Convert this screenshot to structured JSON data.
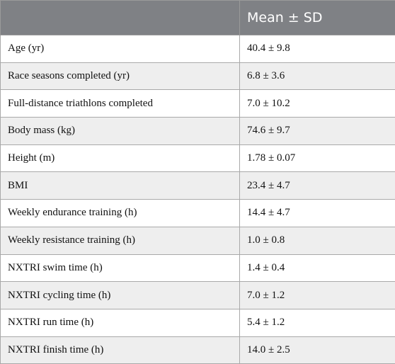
{
  "table": {
    "headers": [
      "",
      "Mean ± SD"
    ],
    "rows": [
      [
        "Age (yr)",
        "40.4 ± 9.8"
      ],
      [
        "Race seasons completed (yr)",
        "6.8 ± 3.6"
      ],
      [
        "Full-distance triathlons completed",
        "7.0 ± 10.2"
      ],
      [
        "Body mass (kg)",
        "74.6 ± 9.7"
      ],
      [
        "Height (m)",
        "1.78 ± 0.07"
      ],
      [
        "BMI",
        "23.4 ± 4.7"
      ],
      [
        "Weekly endurance training (h)",
        "14.4 ± 4.7"
      ],
      [
        "Weekly resistance training (h)",
        "1.0 ± 0.8"
      ],
      [
        "NXTRI swim time (h)",
        "1.4 ± 0.4"
      ],
      [
        "NXTRI cycling time (h)",
        "7.0 ± 1.2"
      ],
      [
        "NXTRI run time (h)",
        "5.4 ± 1.2"
      ],
      [
        "NXTRI finish time (h)",
        "14.0 ± 2.5"
      ]
    ]
  },
  "colors": {
    "header_bg": "#7f8185",
    "header_text": "#ffffff",
    "row_alt_bg": "#eeeeee",
    "border": "#a9a9a9"
  }
}
